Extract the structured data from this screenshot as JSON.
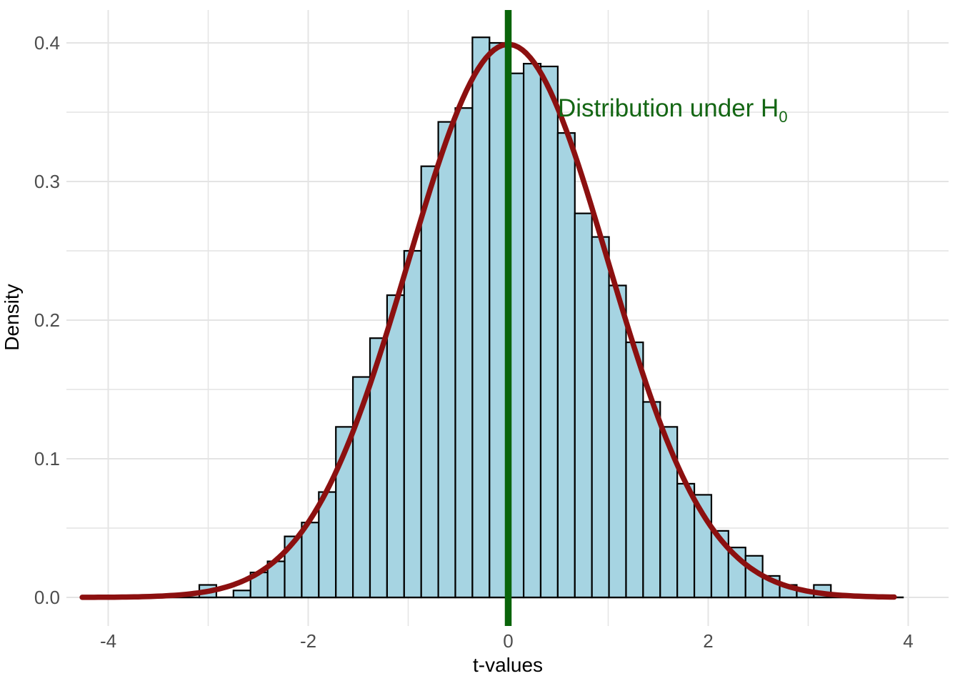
{
  "chart_data": {
    "type": "histogram+curve",
    "title": "",
    "xlabel": "t-values",
    "ylabel": "Density",
    "x_ticks": [
      {
        "t": -4,
        "label": "-4"
      },
      {
        "t": -2,
        "label": "-2"
      },
      {
        "t": 0,
        "label": "0"
      },
      {
        "t": 2,
        "label": "2"
      },
      {
        "t": 4,
        "label": "4"
      }
    ],
    "y_ticks": [
      {
        "d": 0.0,
        "label": "0.0"
      },
      {
        "d": 0.1,
        "label": "0.1"
      },
      {
        "d": 0.2,
        "label": "0.2"
      },
      {
        "d": 0.3,
        "label": "0.3"
      },
      {
        "d": 0.4,
        "label": "0.4"
      }
    ],
    "x_minor": [
      -3,
      -1,
      1,
      3
    ],
    "y_minor": [
      0.05,
      0.15,
      0.25,
      0.35
    ],
    "xlim": [
      -4.42,
      4.41
    ],
    "ylim": [
      -0.021,
      0.424
    ],
    "grid": "major and minor light-gray gridlines on white background",
    "legend": "none",
    "histogram": {
      "bin_start": -4.284,
      "bin_width": 0.1707,
      "heights": [
        0.0005,
        0.0005,
        0.0005,
        0.0005,
        0.0005,
        0.0005,
        0.0005,
        0.009,
        0.0015,
        0.005,
        0.018,
        0.026,
        0.044,
        0.054,
        0.076,
        0.123,
        0.159,
        0.187,
        0.218,
        0.25,
        0.311,
        0.343,
        0.353,
        0.404,
        0.4,
        0.378,
        0.385,
        0.383,
        0.335,
        0.277,
        0.26,
        0.225,
        0.184,
        0.141,
        0.123,
        0.082,
        0.074,
        0.048,
        0.036,
        0.03,
        0.0155,
        0.009,
        0.005,
        0.009,
        0.0005,
        0.0005,
        0.0005
      ]
    },
    "baseline_extent": [
      -4.275,
      3.955
    ],
    "curve": {
      "kind": "standard-normal-pdf",
      "peak_density": 0.3989,
      "t_range": [
        -4.26,
        3.865
      ]
    },
    "vline_t": 0,
    "annotation": {
      "text": "Distribution under H",
      "subscript": "0"
    }
  },
  "colors": {
    "background": "#FFFFFF",
    "bar_fill": "#A6D4E2",
    "bar_stroke": "#000000",
    "curve": "#8C1010",
    "vline": "#0A640A",
    "annotation_text": "#146614",
    "gridline": "#E4E4E4",
    "tick_label": "#4D4D4D",
    "axis_title": "#000000"
  }
}
